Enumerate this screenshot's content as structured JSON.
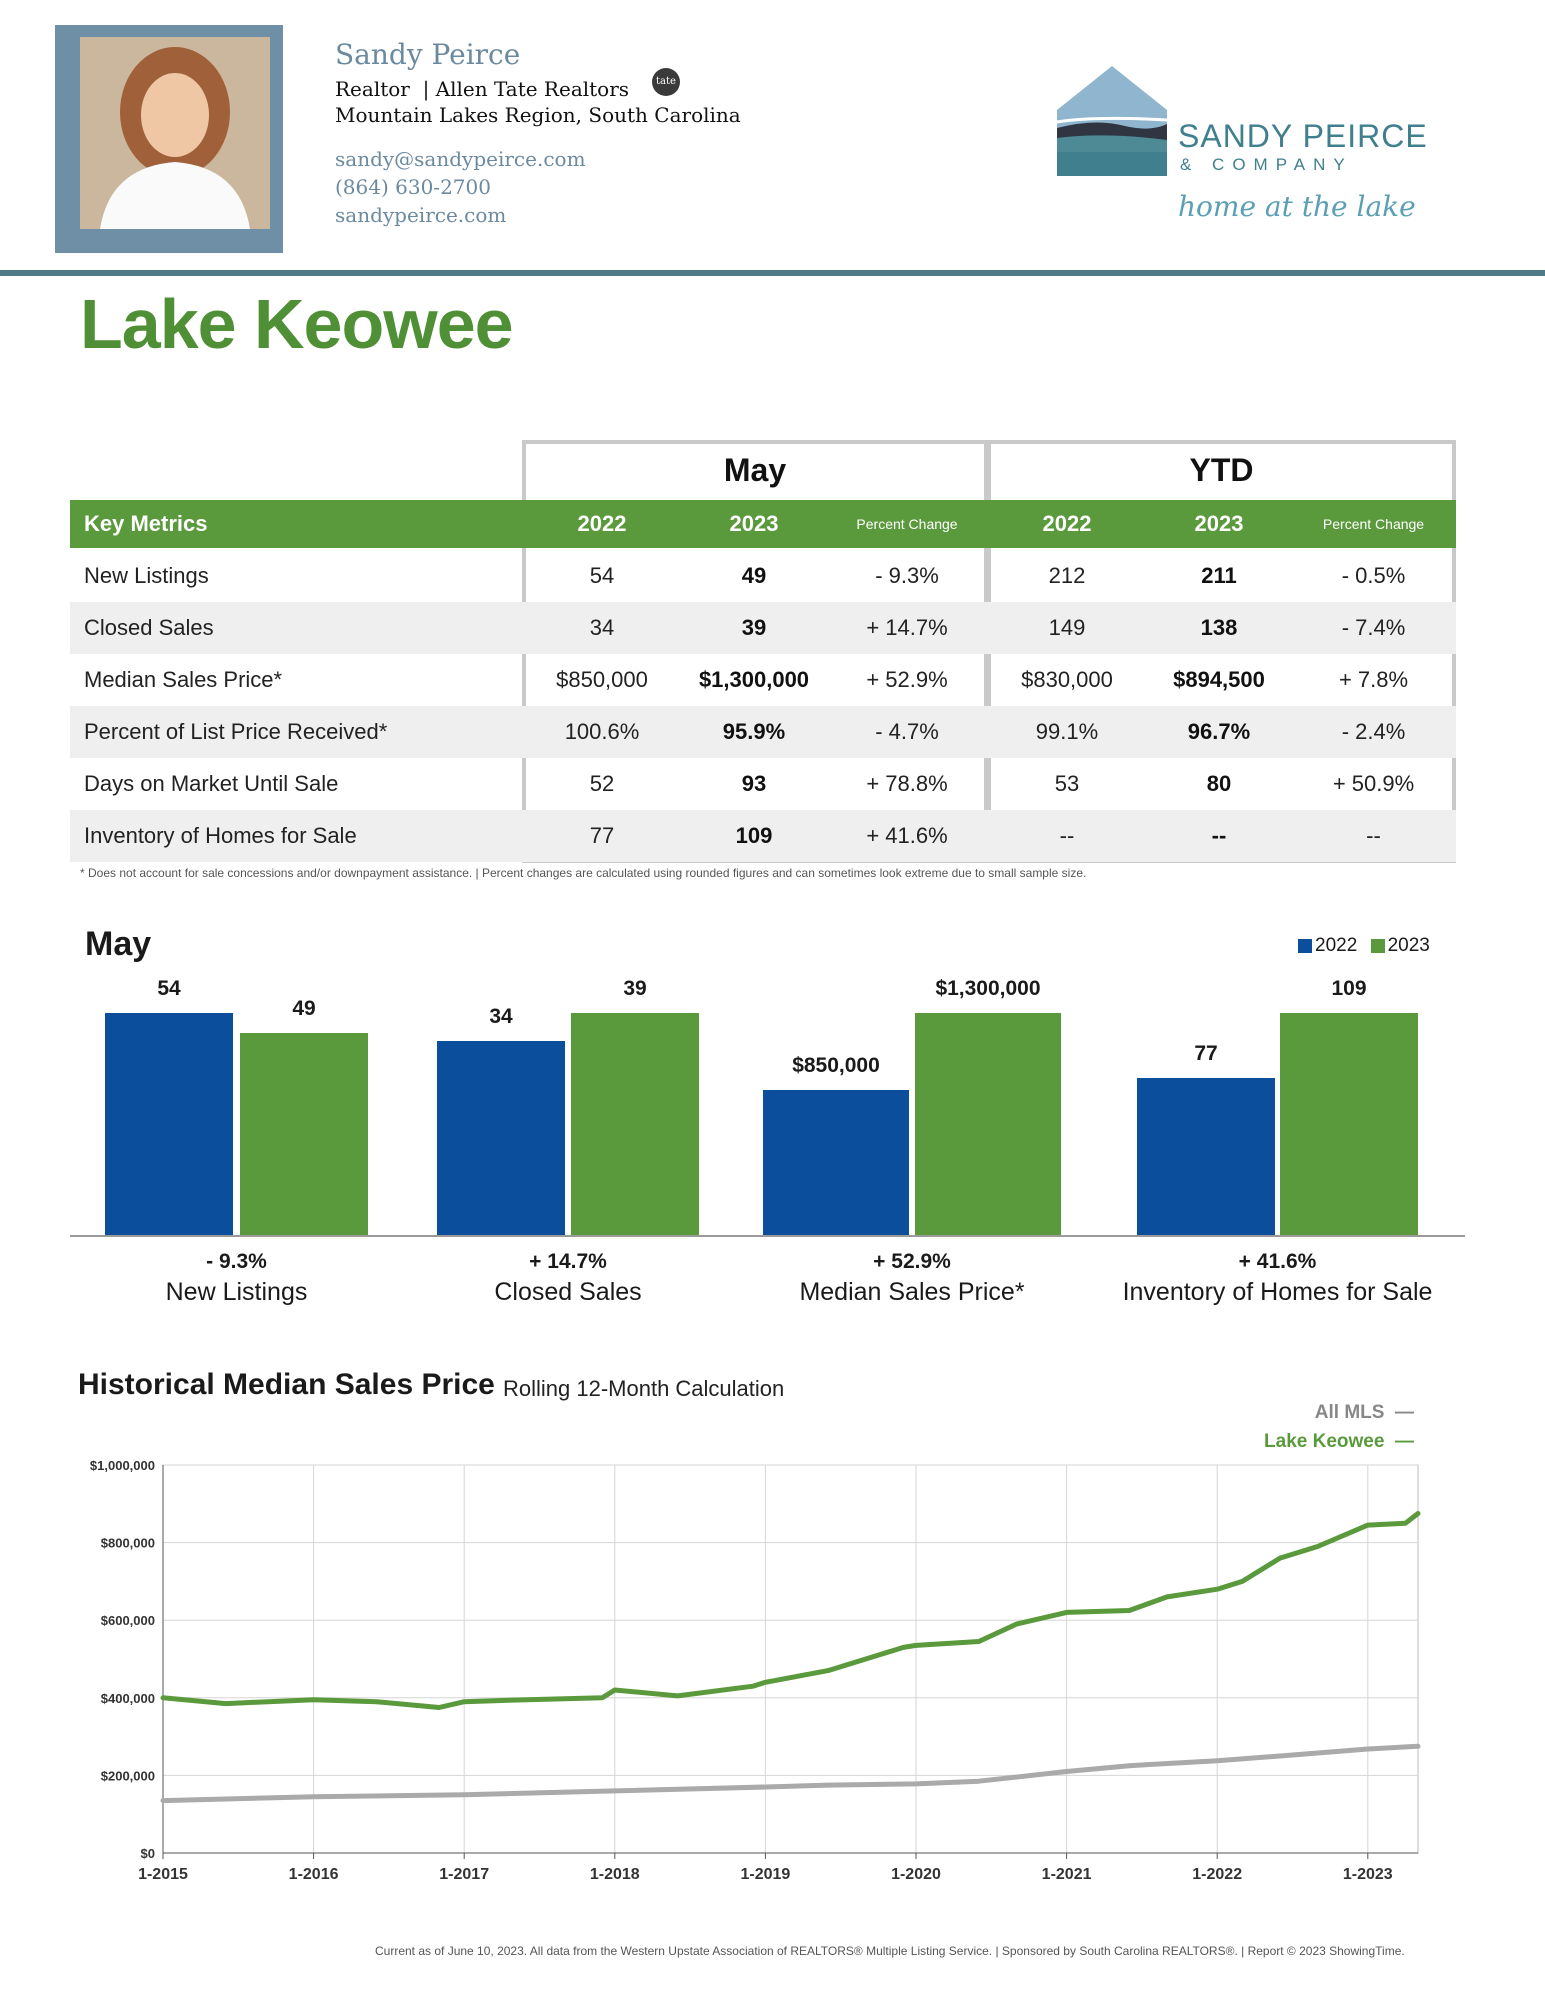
{
  "agent": {
    "name": "Sandy Peirce",
    "title": "Realtor",
    "company": "Allen Tate Realtors",
    "region": "Mountain Lakes Region, South Carolina",
    "email": "sandy@sandypeirce.com",
    "phone": "(864) 630-2700",
    "website": "sandypeirce.com"
  },
  "brand": {
    "name": "SANDY PEIRCE",
    "sub": "& COMPANY",
    "tagline": "home at the lake",
    "tate_badge": "tate"
  },
  "page_title": "Lake Keowee",
  "table": {
    "group_may": "May",
    "group_ytd": "YTD",
    "header_label": "Key Metrics",
    "col_2022": "2022",
    "col_2023": "2023",
    "col_pct": "Percent Change",
    "rows": [
      {
        "label": "New Listings",
        "may22": "54",
        "may23": "49",
        "may_pct": "- 9.3%",
        "ytd22": "212",
        "ytd23": "211",
        "ytd_pct": "- 0.5%"
      },
      {
        "label": "Closed Sales",
        "may22": "34",
        "may23": "39",
        "may_pct": "+ 14.7%",
        "ytd22": "149",
        "ytd23": "138",
        "ytd_pct": "- 7.4%"
      },
      {
        "label": "Median Sales Price*",
        "may22": "$850,000",
        "may23": "$1,300,000",
        "may_pct": "+ 52.9%",
        "ytd22": "$830,000",
        "ytd23": "$894,500",
        "ytd_pct": "+ 7.8%"
      },
      {
        "label": "Percent of List Price Received*",
        "may22": "100.6%",
        "may23": "95.9%",
        "may_pct": "- 4.7%",
        "ytd22": "99.1%",
        "ytd23": "96.7%",
        "ytd_pct": "- 2.4%"
      },
      {
        "label": "Days on Market Until Sale",
        "may22": "52",
        "may23": "93",
        "may_pct": "+ 78.8%",
        "ytd22": "53",
        "ytd23": "80",
        "ytd_pct": "+ 50.9%"
      },
      {
        "label": "Inventory of Homes for Sale",
        "may22": "77",
        "may23": "109",
        "may_pct": "+ 41.6%",
        "ytd22": "--",
        "ytd23": "--",
        "ytd_pct": "--"
      }
    ],
    "footnote": "* Does not account for sale concessions and/or downpayment assistance.  |  Percent changes are calculated using rounded figures and can sometimes look extreme due to small sample size."
  },
  "colors": {
    "blue": "#0b4f9c",
    "green": "#5a9a3d",
    "grey_line": "#aaaaaa",
    "title_green": "#4f8f35"
  },
  "chart_data": [
    {
      "type": "bar",
      "title": "May",
      "legend": [
        "2022",
        "2023"
      ],
      "categories": [
        "New Listings",
        "Closed Sales",
        "Median Sales Price*",
        "Inventory of Homes for Sale"
      ],
      "pct_change": [
        "- 9.3%",
        "+ 14.7%",
        "+ 52.9%",
        "+ 41.6%"
      ],
      "series": [
        {
          "name": "2022",
          "values": [
            54,
            34,
            850000,
            77
          ],
          "labels": [
            "54",
            "34",
            "$850,000",
            "77"
          ]
        },
        {
          "name": "2023",
          "values": [
            49,
            39,
            1300000,
            109
          ],
          "labels": [
            "49",
            "39",
            "$1,300,000",
            "109"
          ]
        }
      ]
    },
    {
      "type": "line",
      "title": "Historical Median Sales Price",
      "subtitle": "Rolling 12-Month Calculation",
      "x_ticks": [
        "1-2015",
        "1-2016",
        "1-2017",
        "1-2018",
        "1-2019",
        "1-2020",
        "1-2021",
        "1-2022",
        "1-2023"
      ],
      "y_ticks": [
        "$0",
        "$200,000",
        "$400,000",
        "$600,000",
        "$800,000",
        "$1,000,000"
      ],
      "ylim": [
        0,
        1000000
      ],
      "xlim": [
        "2015-01",
        "2023-05"
      ],
      "grid": true,
      "legend_position": "top-right",
      "series": [
        {
          "name": "All MLS",
          "x": [
            "2015-01",
            "2016-01",
            "2017-01",
            "2018-01",
            "2019-01",
            "2019-06",
            "2020-01",
            "2020-06",
            "2021-01",
            "2021-06",
            "2022-01",
            "2022-06",
            "2023-01",
            "2023-05"
          ],
          "values": [
            135000,
            145000,
            150000,
            160000,
            170000,
            175000,
            178000,
            185000,
            210000,
            225000,
            238000,
            250000,
            268000,
            275000
          ]
        },
        {
          "name": "Lake Keowee",
          "x": [
            "2015-01",
            "2015-06",
            "2016-01",
            "2016-06",
            "2016-11",
            "2017-01",
            "2017-06",
            "2017-12",
            "2018-01",
            "2018-06",
            "2018-12",
            "2019-01",
            "2019-06",
            "2019-12",
            "2020-01",
            "2020-06",
            "2020-09",
            "2021-01",
            "2021-06",
            "2021-09",
            "2022-01",
            "2022-03",
            "2022-06",
            "2022-09",
            "2023-01",
            "2023-04",
            "2023-05"
          ],
          "values": [
            400000,
            385000,
            395000,
            390000,
            375000,
            390000,
            395000,
            400000,
            420000,
            405000,
            430000,
            440000,
            470000,
            530000,
            535000,
            545000,
            590000,
            620000,
            625000,
            660000,
            680000,
            700000,
            760000,
            790000,
            845000,
            850000,
            875000
          ]
        }
      ]
    }
  ],
  "source": "Current as of June 10, 2023. All data from the Western Upstate Association of REALTORS® Multiple Listing Service.  |  Sponsored by South Carolina REALTORS®.  |  Report © 2023 ShowingTime."
}
